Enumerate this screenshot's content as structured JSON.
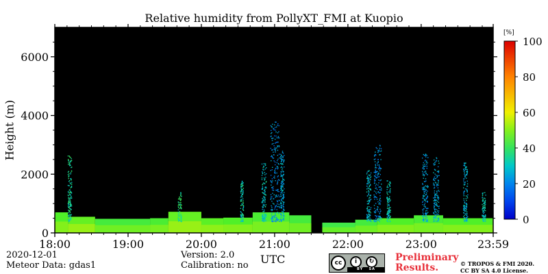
{
  "chart_data": {
    "type": "heatmap",
    "title": "Relative humidity from PollyXT_FMI at Kuopio",
    "xlabel": "UTC",
    "ylabel": "Height (m)",
    "x_tick_labels": [
      "18:00",
      "19:00",
      "20:00",
      "21:00",
      "22:00",
      "23:00",
      "23:59"
    ],
    "x_ticks_hours": [
      18,
      19,
      20,
      21,
      22,
      23,
      23.983
    ],
    "xlim_hours": [
      18,
      23.983
    ],
    "y_tick_labels": [
      "0",
      "2000",
      "4000",
      "6000"
    ],
    "y_ticks": [
      0,
      2000,
      4000,
      6000
    ],
    "ylim": [
      0,
      7000
    ],
    "colorbar": {
      "unit": "[%]",
      "ticks": [
        0,
        20,
        40,
        60,
        80,
        100
      ],
      "tick_labels": [
        "0",
        "20",
        "40",
        "60",
        "80",
        "100"
      ],
      "range": [
        0,
        100
      ]
    },
    "background": "#000000",
    "segments": [
      {
        "start": 18.0,
        "end": 18.18,
        "top": 700,
        "rh": 45
      },
      {
        "start": 18.18,
        "end": 18.55,
        "top": 550,
        "rh": 47
      },
      {
        "start": 18.55,
        "end": 19.3,
        "top": 480,
        "rh": 43
      },
      {
        "start": 19.3,
        "end": 19.55,
        "top": 500,
        "rh": 44
      },
      {
        "start": 19.55,
        "end": 20.0,
        "top": 720,
        "rh": 47
      },
      {
        "start": 20.0,
        "end": 20.3,
        "top": 500,
        "rh": 46
      },
      {
        "start": 20.3,
        "end": 20.7,
        "top": 520,
        "rh": 45
      },
      {
        "start": 20.7,
        "end": 21.2,
        "top": 700,
        "rh": 44
      },
      {
        "start": 21.2,
        "end": 21.5,
        "top": 600,
        "rh": 43
      },
      {
        "start": 21.5,
        "end": 21.65,
        "top": 0,
        "rh": 0
      },
      {
        "start": 21.65,
        "end": 22.1,
        "top": 350,
        "rh": 42
      },
      {
        "start": 22.1,
        "end": 22.4,
        "top": 450,
        "rh": 43
      },
      {
        "start": 22.4,
        "end": 22.9,
        "top": 500,
        "rh": 45
      },
      {
        "start": 22.9,
        "end": 23.3,
        "top": 600,
        "rh": 44
      },
      {
        "start": 23.3,
        "end": 23.983,
        "top": 500,
        "rh": 45
      }
    ],
    "plumes": [
      {
        "center": 18.2,
        "width": 0.05,
        "top": 2700,
        "rh": 35
      },
      {
        "center": 19.7,
        "width": 0.05,
        "top": 1400,
        "rh": 38
      },
      {
        "center": 20.55,
        "width": 0.04,
        "top": 1800,
        "rh": 33
      },
      {
        "center": 20.85,
        "width": 0.06,
        "top": 2400,
        "rh": 30
      },
      {
        "center": 21.0,
        "width": 0.12,
        "top": 3800,
        "rh": 22
      },
      {
        "center": 21.1,
        "width": 0.05,
        "top": 2800,
        "rh": 25
      },
      {
        "center": 22.28,
        "width": 0.06,
        "top": 2200,
        "rh": 28
      },
      {
        "center": 22.4,
        "width": 0.1,
        "top": 3000,
        "rh": 22
      },
      {
        "center": 22.55,
        "width": 0.05,
        "top": 1800,
        "rh": 30
      },
      {
        "center": 23.05,
        "width": 0.08,
        "top": 2700,
        "rh": 24
      },
      {
        "center": 23.2,
        "width": 0.08,
        "top": 2600,
        "rh": 25
      },
      {
        "center": 23.6,
        "width": 0.06,
        "top": 2400,
        "rh": 27
      },
      {
        "center": 23.85,
        "width": 0.05,
        "top": 1400,
        "rh": 32
      }
    ]
  },
  "footer": {
    "date": "2020-12-01",
    "meteor": "Meteor Data: gdas1",
    "version": "Version: 2.0",
    "calibration": "Calibration: no",
    "preliminary_line1": "Preliminary",
    "preliminary_line2": "Results.",
    "copyright_line1": "© TROPOS & FMI 2020.",
    "copyright_line2": "CC BY SA 4.0 License.",
    "license_badge": {
      "cc": "cc",
      "by": "BY",
      "sa": "SA"
    }
  },
  "colors": {
    "preliminary": "#e8303a",
    "background_plot": "#000000"
  }
}
